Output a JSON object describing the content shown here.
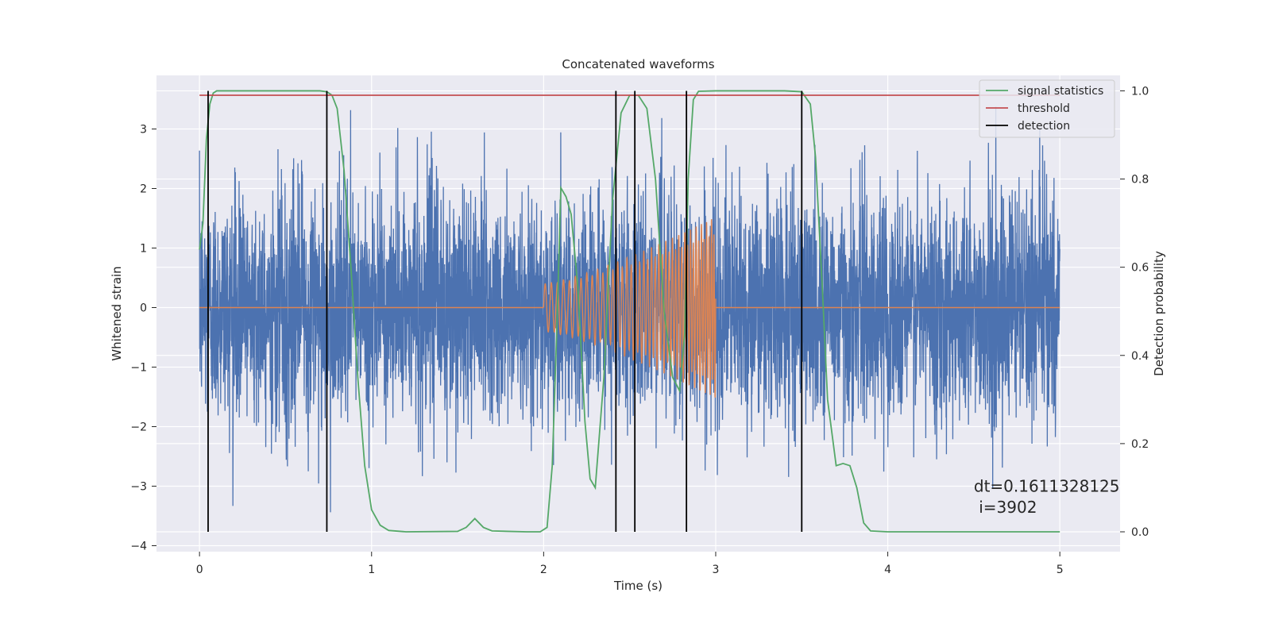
{
  "chart_data": {
    "type": "line",
    "title": "Concatenated waveforms",
    "xlabel": "Time (s)",
    "ylabel": "Whitened strain",
    "ylabel_right": "Detection probability",
    "xlim": [
      -0.25,
      5.35
    ],
    "ylim": [
      -4.1,
      3.9
    ],
    "ylim_right": [
      -0.045,
      1.035
    ],
    "x_ticks": [
      0,
      1,
      2,
      3,
      4,
      5
    ],
    "x_tick_labels": [
      "0",
      "1",
      "2",
      "3",
      "4",
      "5"
    ],
    "y_ticks": [
      -4,
      -3,
      -2,
      -1,
      0,
      1,
      2,
      3
    ],
    "y_tick_labels": [
      "−4",
      "−3",
      "−2",
      "−1",
      "0",
      "1",
      "2",
      "3"
    ],
    "y_right_ticks": [
      0.0,
      0.2,
      0.4,
      0.6,
      0.8,
      1.0
    ],
    "y_right_tick_labels": [
      "0.0",
      "0.2",
      "0.4",
      "0.6",
      "0.8",
      "1.0"
    ],
    "grid": true,
    "legend_position": "top-right",
    "background_color": "#eaeaf2",
    "series": [
      {
        "name": "signal statistics",
        "axis": "right",
        "color": "#55a868",
        "x": [
          0.0,
          0.02,
          0.04,
          0.06,
          0.08,
          0.1,
          0.2,
          0.4,
          0.6,
          0.7,
          0.74,
          0.77,
          0.8,
          0.84,
          0.88,
          0.92,
          0.96,
          1.0,
          1.05,
          1.1,
          1.2,
          1.5,
          1.55,
          1.6,
          1.65,
          1.7,
          1.9,
          1.98,
          2.02,
          2.05,
          2.08,
          2.1,
          2.13,
          2.16,
          2.2,
          2.24,
          2.27,
          2.3,
          2.35,
          2.4,
          2.45,
          2.5,
          2.55,
          2.6,
          2.65,
          2.7,
          2.75,
          2.79,
          2.82,
          2.84,
          2.87,
          2.9,
          3.0,
          3.2,
          3.4,
          3.5,
          3.55,
          3.58,
          3.62,
          3.65,
          3.7,
          3.74,
          3.78,
          3.82,
          3.86,
          3.9,
          4.0,
          4.5,
          5.0
        ],
        "values": [
          0.64,
          0.7,
          0.89,
          0.97,
          0.995,
          1.0,
          1.0,
          1.0,
          1.0,
          1.0,
          0.998,
          0.99,
          0.96,
          0.82,
          0.6,
          0.35,
          0.15,
          0.05,
          0.015,
          0.003,
          0.0,
          0.001,
          0.01,
          0.03,
          0.01,
          0.002,
          0.0,
          0.0,
          0.01,
          0.15,
          0.5,
          0.78,
          0.76,
          0.72,
          0.55,
          0.25,
          0.12,
          0.1,
          0.35,
          0.75,
          0.95,
          0.99,
          0.99,
          0.96,
          0.8,
          0.5,
          0.35,
          0.32,
          0.45,
          0.8,
          0.98,
          0.999,
          1.0,
          1.0,
          1.0,
          0.998,
          0.97,
          0.85,
          0.55,
          0.3,
          0.15,
          0.155,
          0.15,
          0.1,
          0.02,
          0.002,
          0.0,
          0.0,
          0.0
        ]
      },
      {
        "name": "threshold",
        "axis": "right",
        "color": "#c44e52",
        "x": [
          0.0,
          5.0
        ],
        "values": [
          0.99,
          0.99
        ]
      },
      {
        "name": "detection",
        "axis": "right",
        "color": "#000000",
        "type": "vlines",
        "x": [
          0.05,
          0.74,
          2.42,
          2.53,
          2.83,
          3.5
        ],
        "y_range": [
          0.0,
          1.0
        ]
      }
    ],
    "unlabeled_series": [
      {
        "id": "whitened-noise",
        "axis": "left",
        "color": "#4c72b0",
        "x_range": [
          0.0,
          5.0
        ],
        "approx_envelope": [
          -3.6,
          3.4
        ],
        "note_points": 5000
      },
      {
        "id": "injected-chirp",
        "axis": "left",
        "color": "#dd8452",
        "segments": [
          {
            "x": [
              0.0,
              2.0
            ],
            "values": [
              0.0,
              0.0
            ]
          },
          {
            "x": [
              3.0,
              5.0
            ],
            "values": [
              0.0,
              0.0
            ]
          }
        ],
        "chirp": {
          "x_range": [
            2.0,
            3.0
          ],
          "amp_start": 0.4,
          "amp_end": 1.5
        }
      }
    ],
    "annotations": [
      {
        "text": "dt=0.1611328125",
        "x": 4.5,
        "y": -3.0
      },
      {
        "text": " i=3902",
        "x": 4.5,
        "y": -3.35
      }
    ]
  }
}
